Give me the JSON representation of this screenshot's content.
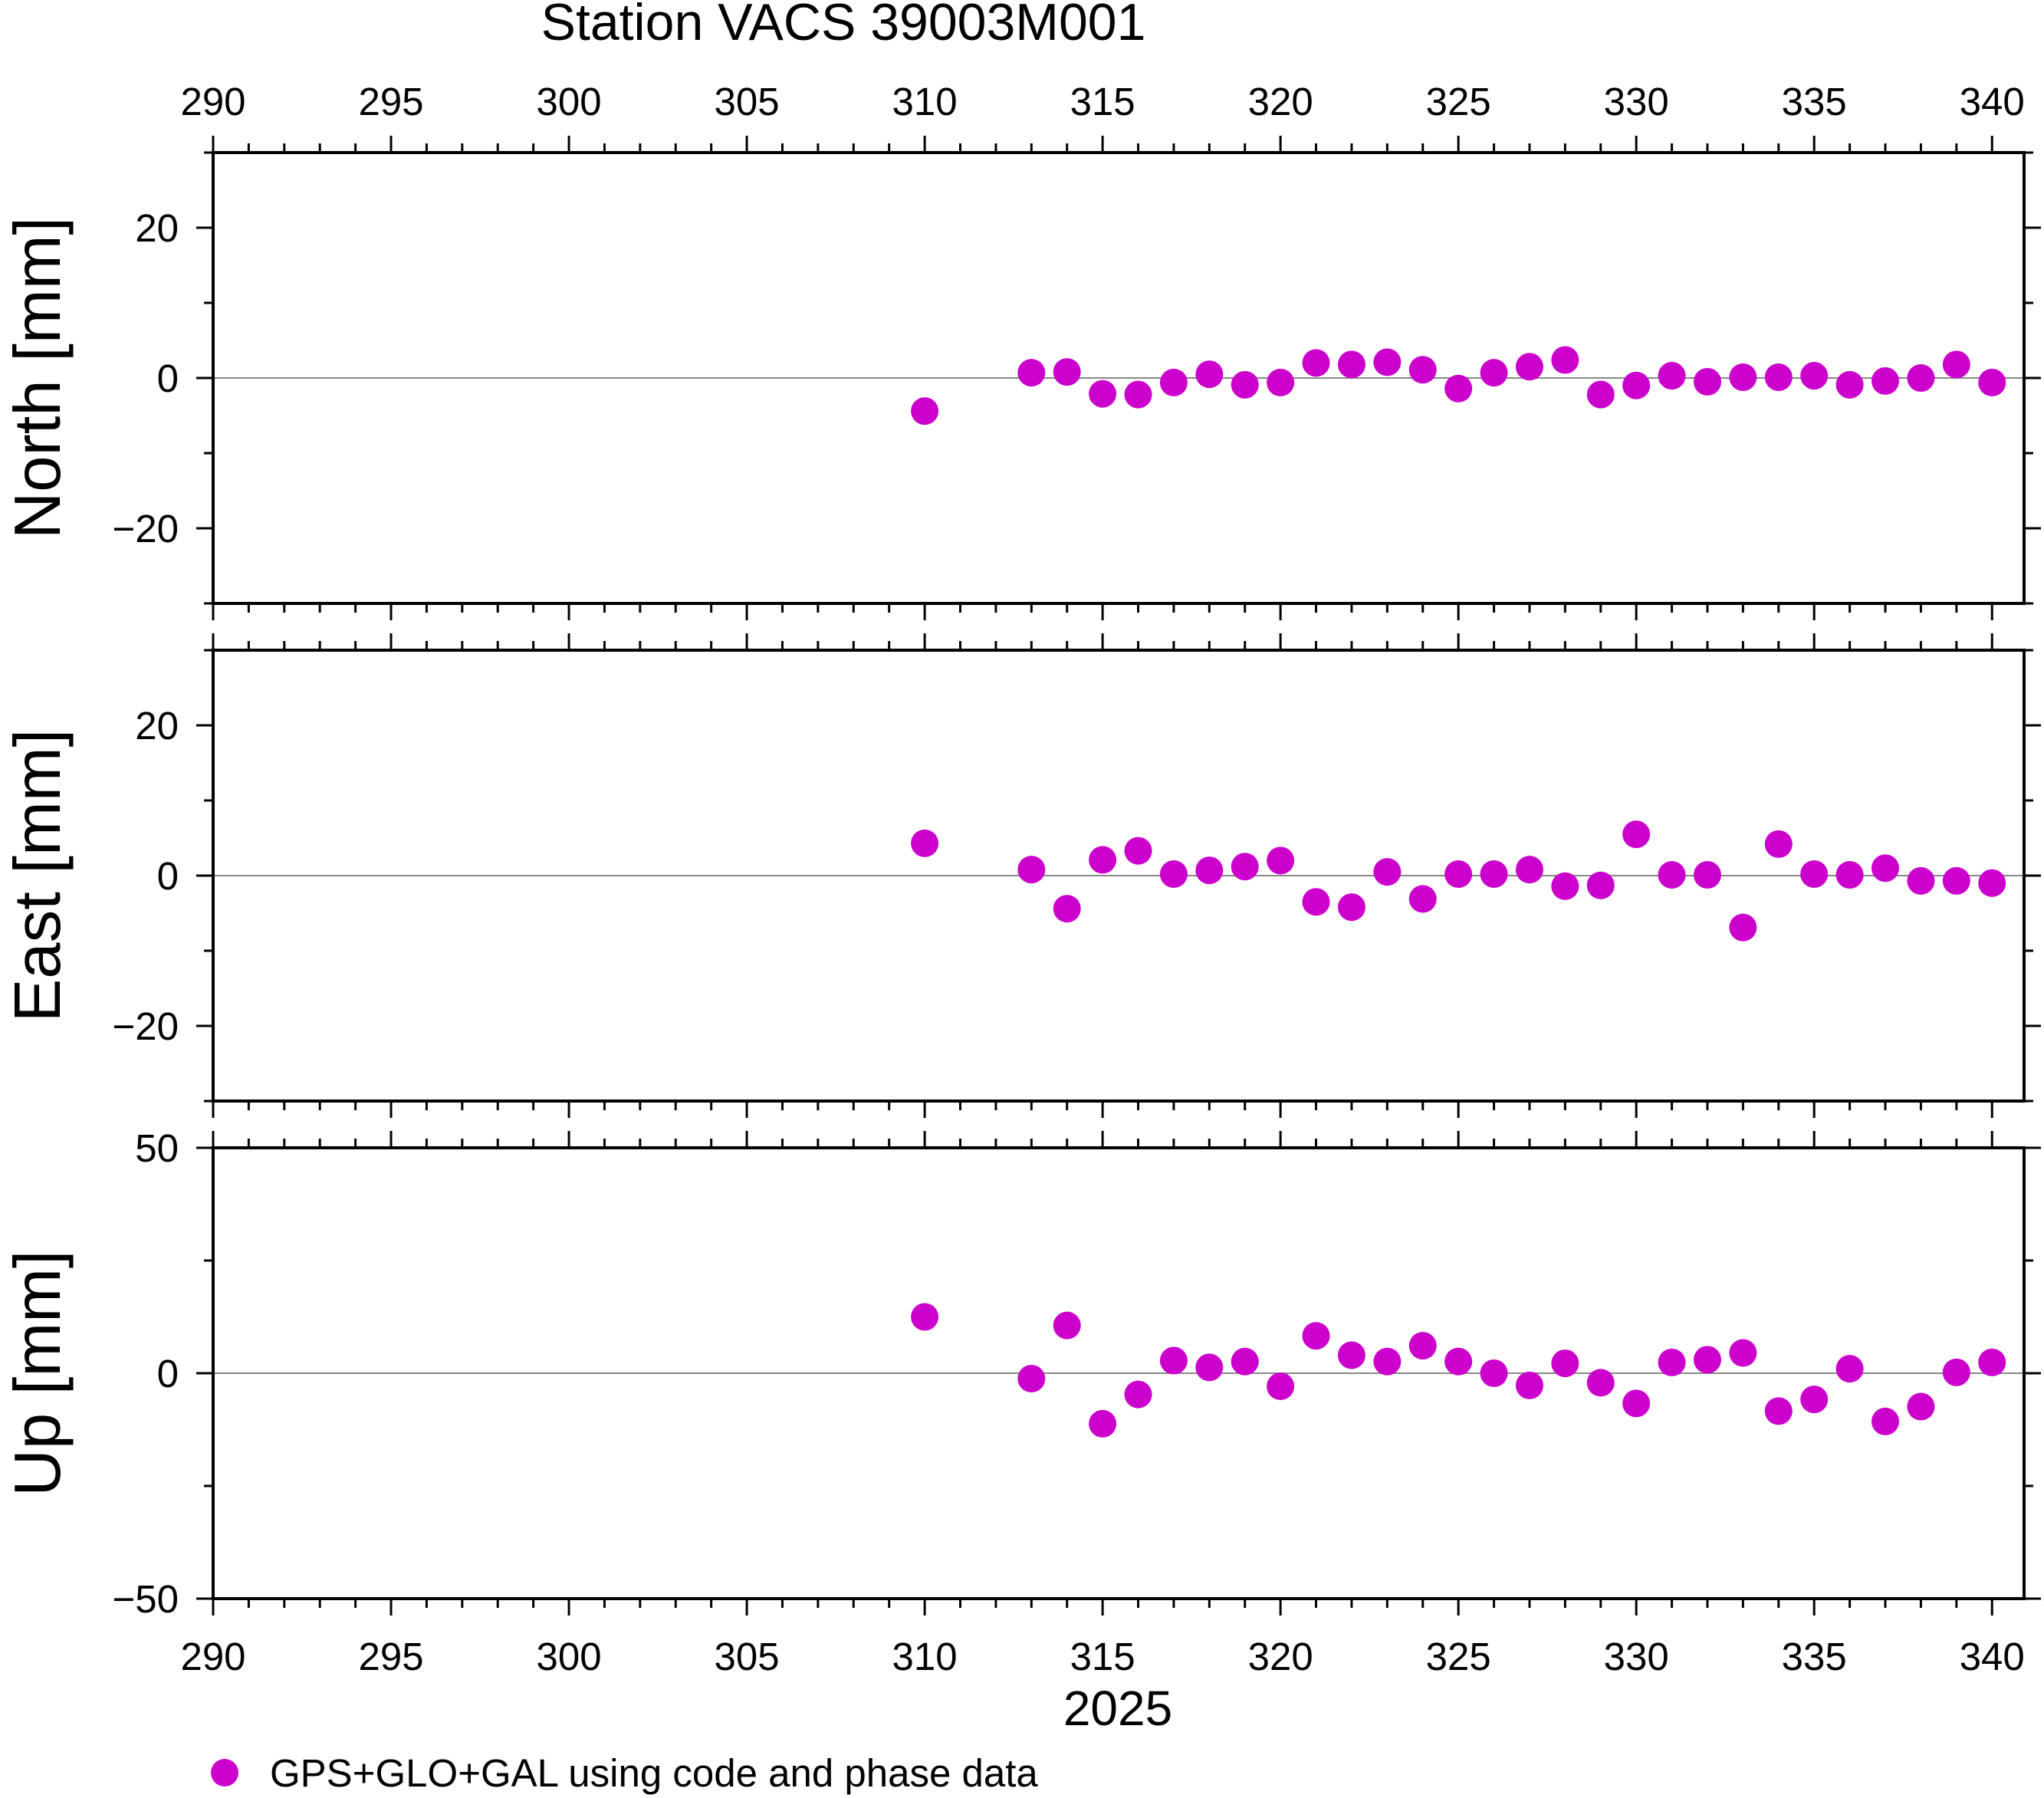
{
  "chart_data": {
    "type": "scatter",
    "title": "Station VACS 39003M001",
    "xlabel": "2025",
    "xlim": [
      290,
      340.9
    ],
    "xticks": [
      290,
      295,
      300,
      305,
      310,
      315,
      320,
      325,
      330,
      335,
      340
    ],
    "marker_color": "#cc00cc",
    "legend": {
      "label": "GPS+GLO+GAL using code and phase data",
      "position": "bottom-left"
    },
    "x": [
      310,
      313,
      314,
      315,
      316,
      317,
      318,
      319,
      320,
      321,
      322,
      323,
      324,
      325,
      326,
      327,
      328,
      329,
      330,
      331,
      332,
      333,
      334,
      335,
      336,
      337,
      338,
      339,
      340
    ],
    "panels": [
      {
        "name": "North",
        "ylabel": "North [mm]",
        "ylim": [
          -30,
          30
        ],
        "yticks": [
          -20,
          0,
          20
        ],
        "yticklabels": [
          "−20",
          "0",
          "20"
        ],
        "values": [
          -4.4,
          0.7,
          0.8,
          -2.1,
          -2.2,
          -0.6,
          0.5,
          -0.9,
          -0.6,
          2.0,
          1.8,
          2.1,
          1.1,
          -1.4,
          0.7,
          1.5,
          2.4,
          -2.2,
          -1.0,
          0.3,
          -0.5,
          0.1,
          0.1,
          0.3,
          -0.9,
          -0.4,
          0.0,
          1.8,
          -0.6
        ]
      },
      {
        "name": "East",
        "ylabel": "East [mm]",
        "ylim": [
          -30,
          30
        ],
        "yticks": [
          -20,
          0,
          20
        ],
        "yticklabels": [
          "−20",
          "0",
          "20"
        ],
        "values": [
          4.3,
          0.8,
          -4.4,
          2.1,
          3.3,
          0.2,
          0.7,
          1.2,
          2.0,
          -3.5,
          -4.2,
          0.5,
          -3.1,
          0.2,
          0.2,
          0.8,
          -1.4,
          -1.3,
          5.5,
          0.1,
          0.1,
          -6.9,
          4.2,
          0.2,
          0.1,
          1.0,
          -0.7,
          -0.7,
          -1.0
        ]
      },
      {
        "name": "Up",
        "ylabel": "Up [mm]",
        "ylim": [
          -50,
          50
        ],
        "yticks": [
          -50,
          0,
          50
        ],
        "yticklabels": [
          "−50",
          "0",
          "50"
        ],
        "values": [
          12.5,
          -1.2,
          10.6,
          -11.2,
          -4.7,
          2.8,
          1.3,
          2.6,
          -2.9,
          8.3,
          4.0,
          2.6,
          6.1,
          2.6,
          0.0,
          -2.7,
          2.2,
          -2.1,
          -6.7,
          2.4,
          3.0,
          4.5,
          -8.4,
          -5.8,
          1.0,
          -10.7,
          -7.4,
          0.2,
          2.4
        ]
      }
    ]
  }
}
